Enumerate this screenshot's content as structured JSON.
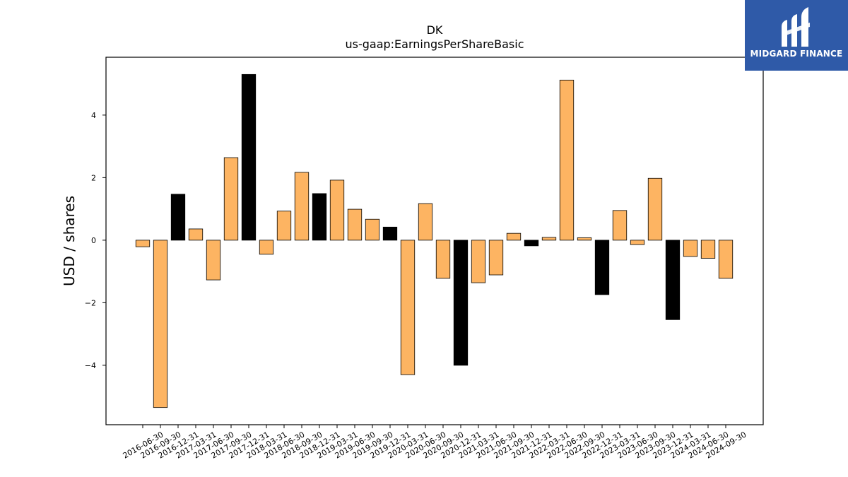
{
  "chart_data": {
    "type": "bar",
    "title": "DK",
    "subtitle": "us-gaap:EarningsPerShareBasic",
    "ylabel": "USD / shares",
    "xlabel": "",
    "ylim": [
      -5.9,
      5.85
    ],
    "yticks": [
      -4,
      -2,
      0,
      2,
      4
    ],
    "categories": [
      "2016-06-30",
      "2016-09-30",
      "2016-12-31",
      "2017-03-31",
      "2017-06-30",
      "2017-09-30",
      "2017-12-31",
      "2018-03-31",
      "2018-06-30",
      "2018-09-30",
      "2018-12-31",
      "2019-03-31",
      "2019-06-30",
      "2019-09-30",
      "2019-12-31",
      "2020-03-31",
      "2020-06-30",
      "2020-09-30",
      "2020-12-31",
      "2021-03-31",
      "2021-06-30",
      "2021-09-30",
      "2021-12-31",
      "2022-03-31",
      "2022-06-30",
      "2022-09-30",
      "2022-12-31",
      "2023-03-31",
      "2023-06-30",
      "2023-09-30",
      "2023-12-31",
      "2024-03-31",
      "2024-06-30",
      "2024-09-30"
    ],
    "values": [
      -0.21,
      -5.35,
      1.47,
      0.36,
      -1.27,
      2.64,
      5.3,
      -0.45,
      0.93,
      2.17,
      1.49,
      1.92,
      0.99,
      0.67,
      0.42,
      -4.3,
      1.17,
      -1.22,
      -4.0,
      -1.36,
      -1.11,
      0.22,
      -0.18,
      0.09,
      5.12,
      0.08,
      -1.74,
      0.95,
      -0.14,
      1.98,
      -2.54,
      -0.52,
      -0.58,
      -1.22
    ],
    "highlight": [
      false,
      false,
      true,
      false,
      false,
      false,
      true,
      false,
      false,
      false,
      true,
      false,
      false,
      false,
      true,
      false,
      false,
      false,
      true,
      false,
      false,
      false,
      true,
      false,
      false,
      false,
      true,
      false,
      false,
      false,
      true,
      false,
      false,
      false
    ],
    "colors": {
      "bar": "#fdb462",
      "highlight": "#000000",
      "edge": "#000000"
    },
    "grid": false,
    "legend": "none"
  },
  "logo": {
    "text": "MIDGARD FINANCE",
    "color": "#2f5aa8"
  }
}
